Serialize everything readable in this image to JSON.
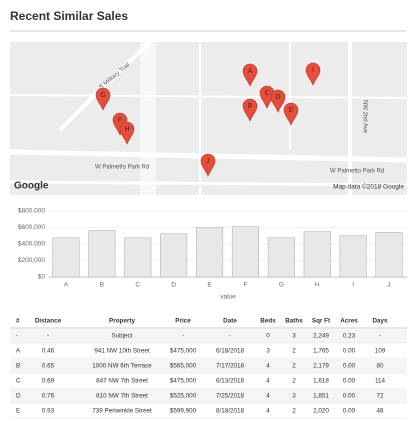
{
  "header": {
    "title": "Recent Similar Sales"
  },
  "map": {
    "streets": [
      "S Military Trail",
      "W Palmetto Park Rd",
      "W Palmetto Park Rd",
      "NW 2nd Ave"
    ],
    "markers": [
      "A",
      "B",
      "C",
      "D",
      "E",
      "F",
      "G",
      "H",
      "I",
      "J"
    ],
    "logo": "Google",
    "attribution": "Map data ©2018 Google"
  },
  "chart_data": {
    "type": "bar",
    "x_label": "value",
    "categories": [
      "A",
      "B",
      "C",
      "D",
      "E",
      "F",
      "G",
      "H",
      "I",
      "J"
    ],
    "values": [
      475000,
      565000,
      475000,
      525000,
      599900,
      610000,
      475000,
      550000,
      500000,
      540000
    ],
    "color": "#e8e8e8",
    "ylim": [
      0,
      800000
    ],
    "yticks": [
      {
        "value": 0,
        "label": "$0"
      },
      {
        "value": 200000,
        "label": "$200,000"
      },
      {
        "value": 400000,
        "label": "$400,000"
      },
      {
        "value": 600000,
        "label": "$600,000"
      },
      {
        "value": 800000,
        "label": "$800,000"
      }
    ],
    "grid": true
  },
  "table": {
    "columns": [
      "#",
      "Distance",
      "Property",
      "Price",
      "Date",
      "Beds",
      "Baths",
      "Sqr Ft",
      "Acres",
      "Days"
    ],
    "rows": [
      [
        "-",
        "-",
        "Subject",
        "-",
        "-",
        "0",
        "3",
        "2,249",
        "0.23",
        "-"
      ],
      [
        "A",
        "0.46",
        "941 NW 10th Street",
        "$475,000",
        "6/18/2018",
        "3",
        "2",
        "1,765",
        "0.00",
        "109"
      ],
      [
        "B",
        "0.65",
        "1000 NW 6th Terrace",
        "$565,000",
        "7/17/2018",
        "4",
        "2",
        "2,179",
        "0.00",
        "80"
      ],
      [
        "C",
        "0.69",
        "847 NW 7th Street",
        "$475,000",
        "6/13/2018",
        "4",
        "2",
        "1,618",
        "0.00",
        "114"
      ],
      [
        "D",
        "0.76",
        "810 NW 7th Street",
        "$525,000",
        "7/25/2018",
        "4",
        "3",
        "1,851",
        "0.00",
        "72"
      ],
      [
        "E",
        "0.93",
        "739 Periwinkle Street",
        "$599,900",
        "8/18/2018",
        "4",
        "2",
        "2,020",
        "0.00",
        "48"
      ]
    ]
  }
}
